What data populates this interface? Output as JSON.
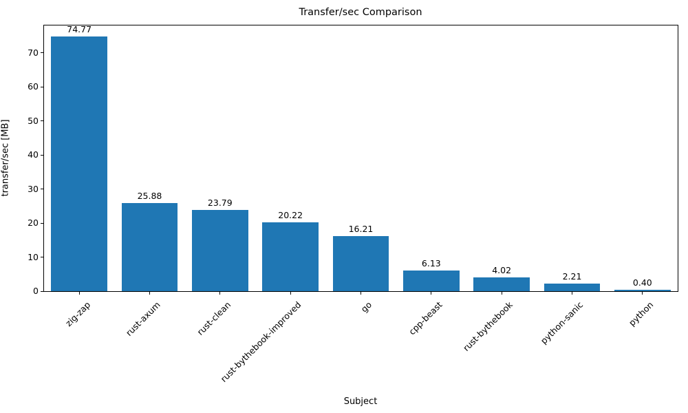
{
  "chart_data": {
    "type": "bar",
    "title": "Transfer/sec Comparison",
    "xlabel": "Subject",
    "ylabel": "transfer/sec [MB]",
    "categories": [
      "zig-zap",
      "rust-axum",
      "rust-clean",
      "rust-bythebook-improved",
      "go",
      "cpp-beast",
      "rust-bythebook",
      "python-sanic",
      "python"
    ],
    "values": [
      74.77,
      25.88,
      23.79,
      20.22,
      16.21,
      6.13,
      4.02,
      2.21,
      0.4
    ],
    "value_labels": [
      "74.77",
      "25.88",
      "23.79",
      "20.22",
      "16.21",
      "6.13",
      "4.02",
      "2.21",
      "0.40"
    ],
    "ylim": [
      0,
      78
    ],
    "yticks": [
      0,
      10,
      20,
      30,
      40,
      50,
      60,
      70
    ],
    "bar_color": "#1f77b4",
    "grid": false,
    "legend": "none",
    "x_tick_rotation_deg": 45
  }
}
